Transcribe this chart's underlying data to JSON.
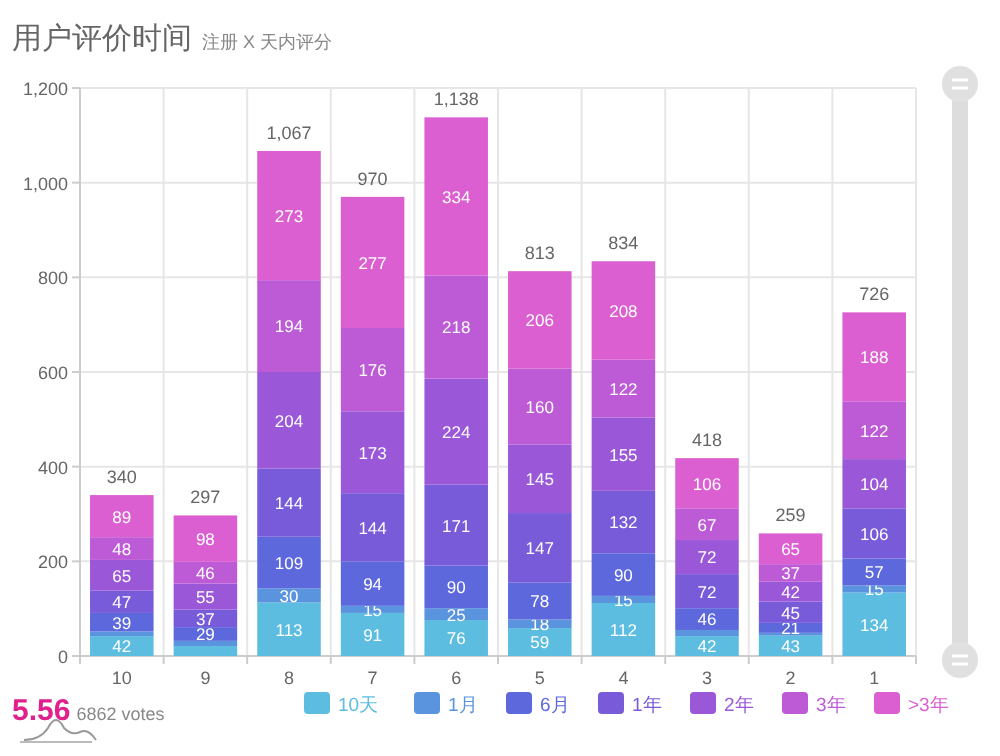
{
  "chart_data": {
    "type": "bar",
    "title": "用户评价时间",
    "subtitle": "注册 X 天内评分",
    "categories": [
      "10",
      "9",
      "8",
      "7",
      "6",
      "5",
      "4",
      "3",
      "2",
      "1"
    ],
    "stacked": true,
    "series": [
      {
        "name": "10天",
        "color": "#5dbde0",
        "values": [
          42,
          21,
          113,
          91,
          76,
          59,
          112,
          42,
          43,
          134
        ],
        "value_labels": [
          "42",
          null,
          "113",
          "91",
          "76",
          "59",
          "112",
          "42",
          "43",
          "134"
        ]
      },
      {
        "name": "1月",
        "color": "#5b94de",
        "values": [
          10,
          11,
          30,
          15,
          25,
          18,
          15,
          13,
          6,
          15
        ],
        "value_labels": [
          null,
          null,
          "30",
          "15",
          "25",
          "18",
          "15",
          null,
          null,
          "15"
        ]
      },
      {
        "name": "6月",
        "color": "#5c68dc",
        "values": [
          39,
          29,
          109,
          94,
          90,
          78,
          90,
          46,
          21,
          57
        ],
        "value_labels": [
          "39",
          "29",
          "109",
          "94",
          "90",
          "78",
          "90",
          "46",
          "21",
          "57"
        ]
      },
      {
        "name": "1年",
        "color": "#785bd9",
        "values": [
          47,
          37,
          144,
          144,
          171,
          147,
          132,
          72,
          45,
          106
        ],
        "value_labels": [
          "47",
          "37",
          "144",
          "144",
          "171",
          "147",
          "132",
          "72",
          "45",
          "106"
        ]
      },
      {
        "name": "2年",
        "color": "#9a58d8",
        "values": [
          65,
          55,
          204,
          173,
          224,
          145,
          155,
          72,
          42,
          104
        ],
        "value_labels": [
          "65",
          "55",
          "204",
          "173",
          "224",
          "145",
          "155",
          "72",
          "42",
          "104"
        ]
      },
      {
        "name": "3年",
        "color": "#bd5bd6",
        "values": [
          48,
          46,
          194,
          176,
          218,
          160,
          122,
          67,
          37,
          122
        ],
        "value_labels": [
          "48",
          "46",
          "194",
          "176",
          "218",
          "160",
          "122",
          "67",
          "37",
          "122"
        ]
      },
      {
        "name": ">3年",
        "color": "#db5fd0",
        "values": [
          89,
          98,
          273,
          277,
          334,
          206,
          208,
          106,
          65,
          188
        ],
        "value_labels": [
          "89",
          "98",
          "273",
          "277",
          "334",
          "206",
          "208",
          "106",
          "65",
          "188"
        ]
      }
    ],
    "totals": [
      "340",
      "297",
      "1,067",
      "970",
      "1,138",
      "813",
      "834",
      "418",
      "259",
      "726"
    ],
    "ylim": [
      0,
      1200
    ],
    "yticks": [
      0,
      200,
      400,
      600,
      800,
      {
        "value": 1000,
        "label": "1,000"
      },
      {
        "value": 1200,
        "label": "1,200"
      }
    ],
    "grid": true,
    "legend": "bottom right",
    "annotations": [
      "5.56",
      "6862 votes"
    ]
  }
}
